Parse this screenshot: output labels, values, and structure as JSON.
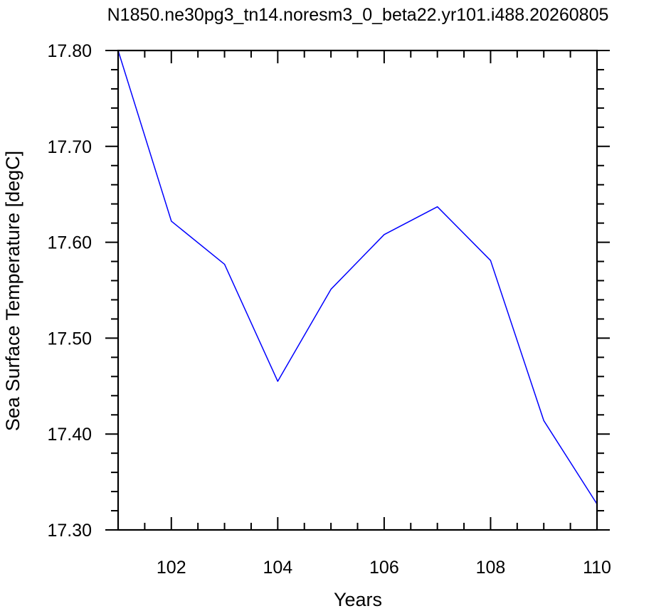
{
  "chart_data": {
    "type": "line",
    "title": "N1850.ne30pg3_tn14.noresm3_0_beta22.yr101.i488.20260805",
    "xlabel": "Years",
    "ylabel": "Sea Surface Temperature [degC]",
    "xlim": [
      101,
      110
    ],
    "ylim": [
      17.3,
      17.8
    ],
    "x_ticks": [
      102,
      104,
      106,
      108,
      110
    ],
    "x_tick_labels": [
      "102",
      "104",
      "106",
      "108",
      "110"
    ],
    "y_ticks": [
      17.3,
      17.4,
      17.5,
      17.6,
      17.7,
      17.8
    ],
    "y_tick_labels": [
      "17.30",
      "17.40",
      "17.50",
      "17.60",
      "17.70",
      "17.80"
    ],
    "grid": false,
    "series": [
      {
        "color": "#0000ff",
        "x": [
          101,
          102,
          103,
          104,
          105,
          106,
          107,
          108,
          109,
          110
        ],
        "values": [
          17.8,
          17.622,
          17.577,
          17.455,
          17.551,
          17.608,
          17.637,
          17.581,
          17.414,
          17.327
        ]
      }
    ]
  }
}
